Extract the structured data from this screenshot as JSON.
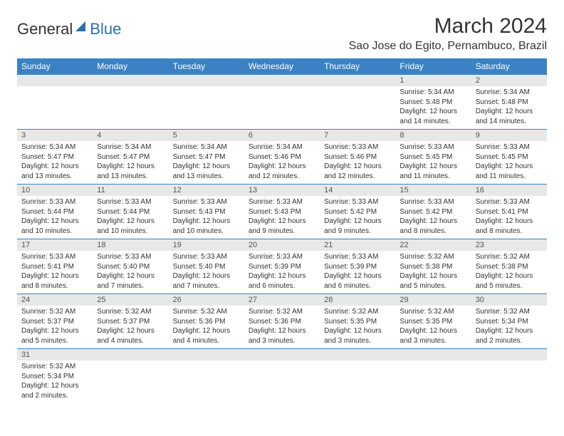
{
  "brand": {
    "text1": "General",
    "text2": "Blue",
    "color1": "#333333",
    "color2": "#2b6fb0",
    "icon_color": "#2b6fb0"
  },
  "title": "March 2024",
  "location": "Sao Jose do Egito, Pernambuco, Brazil",
  "header_bg": "#3b82c4",
  "header_fg": "#ffffff",
  "daynum_bg": "#e8e8e8",
  "border_color": "#3b82c4",
  "weekdays": [
    "Sunday",
    "Monday",
    "Tuesday",
    "Wednesday",
    "Thursday",
    "Friday",
    "Saturday"
  ],
  "weeks": [
    [
      {
        "n": "",
        "sr": "",
        "ss": "",
        "dl": ""
      },
      {
        "n": "",
        "sr": "",
        "ss": "",
        "dl": ""
      },
      {
        "n": "",
        "sr": "",
        "ss": "",
        "dl": ""
      },
      {
        "n": "",
        "sr": "",
        "ss": "",
        "dl": ""
      },
      {
        "n": "",
        "sr": "",
        "ss": "",
        "dl": ""
      },
      {
        "n": "1",
        "sr": "Sunrise: 5:34 AM",
        "ss": "Sunset: 5:48 PM",
        "dl": "Daylight: 12 hours and 14 minutes."
      },
      {
        "n": "2",
        "sr": "Sunrise: 5:34 AM",
        "ss": "Sunset: 5:48 PM",
        "dl": "Daylight: 12 hours and 14 minutes."
      }
    ],
    [
      {
        "n": "3",
        "sr": "Sunrise: 5:34 AM",
        "ss": "Sunset: 5:47 PM",
        "dl": "Daylight: 12 hours and 13 minutes."
      },
      {
        "n": "4",
        "sr": "Sunrise: 5:34 AM",
        "ss": "Sunset: 5:47 PM",
        "dl": "Daylight: 12 hours and 13 minutes."
      },
      {
        "n": "5",
        "sr": "Sunrise: 5:34 AM",
        "ss": "Sunset: 5:47 PM",
        "dl": "Daylight: 12 hours and 13 minutes."
      },
      {
        "n": "6",
        "sr": "Sunrise: 5:34 AM",
        "ss": "Sunset: 5:46 PM",
        "dl": "Daylight: 12 hours and 12 minutes."
      },
      {
        "n": "7",
        "sr": "Sunrise: 5:33 AM",
        "ss": "Sunset: 5:46 PM",
        "dl": "Daylight: 12 hours and 12 minutes."
      },
      {
        "n": "8",
        "sr": "Sunrise: 5:33 AM",
        "ss": "Sunset: 5:45 PM",
        "dl": "Daylight: 12 hours and 11 minutes."
      },
      {
        "n": "9",
        "sr": "Sunrise: 5:33 AM",
        "ss": "Sunset: 5:45 PM",
        "dl": "Daylight: 12 hours and 11 minutes."
      }
    ],
    [
      {
        "n": "10",
        "sr": "Sunrise: 5:33 AM",
        "ss": "Sunset: 5:44 PM",
        "dl": "Daylight: 12 hours and 10 minutes."
      },
      {
        "n": "11",
        "sr": "Sunrise: 5:33 AM",
        "ss": "Sunset: 5:44 PM",
        "dl": "Daylight: 12 hours and 10 minutes."
      },
      {
        "n": "12",
        "sr": "Sunrise: 5:33 AM",
        "ss": "Sunset: 5:43 PM",
        "dl": "Daylight: 12 hours and 10 minutes."
      },
      {
        "n": "13",
        "sr": "Sunrise: 5:33 AM",
        "ss": "Sunset: 5:43 PM",
        "dl": "Daylight: 12 hours and 9 minutes."
      },
      {
        "n": "14",
        "sr": "Sunrise: 5:33 AM",
        "ss": "Sunset: 5:42 PM",
        "dl": "Daylight: 12 hours and 9 minutes."
      },
      {
        "n": "15",
        "sr": "Sunrise: 5:33 AM",
        "ss": "Sunset: 5:42 PM",
        "dl": "Daylight: 12 hours and 8 minutes."
      },
      {
        "n": "16",
        "sr": "Sunrise: 5:33 AM",
        "ss": "Sunset: 5:41 PM",
        "dl": "Daylight: 12 hours and 8 minutes."
      }
    ],
    [
      {
        "n": "17",
        "sr": "Sunrise: 5:33 AM",
        "ss": "Sunset: 5:41 PM",
        "dl": "Daylight: 12 hours and 8 minutes."
      },
      {
        "n": "18",
        "sr": "Sunrise: 5:33 AM",
        "ss": "Sunset: 5:40 PM",
        "dl": "Daylight: 12 hours and 7 minutes."
      },
      {
        "n": "19",
        "sr": "Sunrise: 5:33 AM",
        "ss": "Sunset: 5:40 PM",
        "dl": "Daylight: 12 hours and 7 minutes."
      },
      {
        "n": "20",
        "sr": "Sunrise: 5:33 AM",
        "ss": "Sunset: 5:39 PM",
        "dl": "Daylight: 12 hours and 6 minutes."
      },
      {
        "n": "21",
        "sr": "Sunrise: 5:33 AM",
        "ss": "Sunset: 5:39 PM",
        "dl": "Daylight: 12 hours and 6 minutes."
      },
      {
        "n": "22",
        "sr": "Sunrise: 5:32 AM",
        "ss": "Sunset: 5:38 PM",
        "dl": "Daylight: 12 hours and 5 minutes."
      },
      {
        "n": "23",
        "sr": "Sunrise: 5:32 AM",
        "ss": "Sunset: 5:38 PM",
        "dl": "Daylight: 12 hours and 5 minutes."
      }
    ],
    [
      {
        "n": "24",
        "sr": "Sunrise: 5:32 AM",
        "ss": "Sunset: 5:37 PM",
        "dl": "Daylight: 12 hours and 5 minutes."
      },
      {
        "n": "25",
        "sr": "Sunrise: 5:32 AM",
        "ss": "Sunset: 5:37 PM",
        "dl": "Daylight: 12 hours and 4 minutes."
      },
      {
        "n": "26",
        "sr": "Sunrise: 5:32 AM",
        "ss": "Sunset: 5:36 PM",
        "dl": "Daylight: 12 hours and 4 minutes."
      },
      {
        "n": "27",
        "sr": "Sunrise: 5:32 AM",
        "ss": "Sunset: 5:36 PM",
        "dl": "Daylight: 12 hours and 3 minutes."
      },
      {
        "n": "28",
        "sr": "Sunrise: 5:32 AM",
        "ss": "Sunset: 5:35 PM",
        "dl": "Daylight: 12 hours and 3 minutes."
      },
      {
        "n": "29",
        "sr": "Sunrise: 5:32 AM",
        "ss": "Sunset: 5:35 PM",
        "dl": "Daylight: 12 hours and 3 minutes."
      },
      {
        "n": "30",
        "sr": "Sunrise: 5:32 AM",
        "ss": "Sunset: 5:34 PM",
        "dl": "Daylight: 12 hours and 2 minutes."
      }
    ],
    [
      {
        "n": "31",
        "sr": "Sunrise: 5:32 AM",
        "ss": "Sunset: 5:34 PM",
        "dl": "Daylight: 12 hours and 2 minutes."
      },
      {
        "n": "",
        "sr": "",
        "ss": "",
        "dl": ""
      },
      {
        "n": "",
        "sr": "",
        "ss": "",
        "dl": ""
      },
      {
        "n": "",
        "sr": "",
        "ss": "",
        "dl": ""
      },
      {
        "n": "",
        "sr": "",
        "ss": "",
        "dl": ""
      },
      {
        "n": "",
        "sr": "",
        "ss": "",
        "dl": ""
      },
      {
        "n": "",
        "sr": "",
        "ss": "",
        "dl": ""
      }
    ]
  ]
}
